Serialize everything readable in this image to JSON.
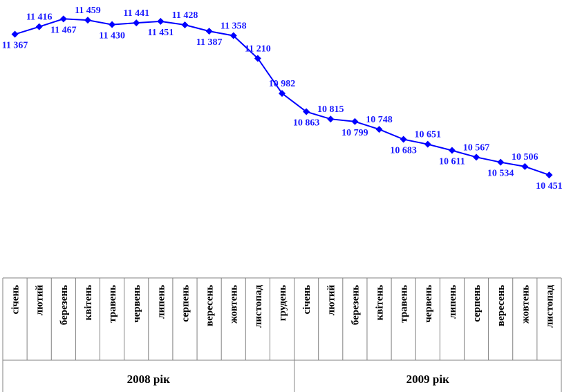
{
  "chart_data": {
    "type": "line",
    "color": "#0000ff",
    "categories": [
      "січень",
      "лютий",
      "березень",
      "квітень",
      "травень",
      "червень",
      "липень",
      "серпень",
      "вересень",
      "жовтень",
      "листопад",
      "грудень",
      "січень",
      "лютий",
      "березень",
      "квітень",
      "травень",
      "червень",
      "липень",
      "серпень",
      "вересень",
      "жовтень",
      "листопад"
    ],
    "values": [
      11367,
      11416,
      11467,
      11459,
      11430,
      11441,
      11451,
      11428,
      11387,
      11358,
      11210,
      10982,
      10863,
      10815,
      10799,
      10748,
      10683,
      10651,
      10611,
      10567,
      10534,
      10506,
      10451
    ],
    "labels": [
      "11 367",
      "11 416",
      "11 467",
      "11 459",
      "11 430",
      "11 441",
      "11 451",
      "11 428",
      "11 387",
      "11 358",
      "11 210",
      "10 982",
      "10 863",
      "10 815",
      "10 799",
      "10 748",
      "10 683",
      "10 651",
      "10 611",
      "10 567",
      "10 534",
      "10 506",
      "10 451"
    ],
    "label_above": [
      false,
      true,
      false,
      true,
      false,
      true,
      false,
      true,
      false,
      true,
      true,
      true,
      false,
      true,
      false,
      true,
      false,
      true,
      false,
      true,
      false,
      true,
      false
    ],
    "year_groups": [
      {
        "label": "2008 рік",
        "count": 12
      },
      {
        "label": "2009 рік",
        "count": 11
      }
    ],
    "ylim": [
      10150,
      11500
    ],
    "title": "",
    "xlabel": "",
    "ylabel": ""
  }
}
